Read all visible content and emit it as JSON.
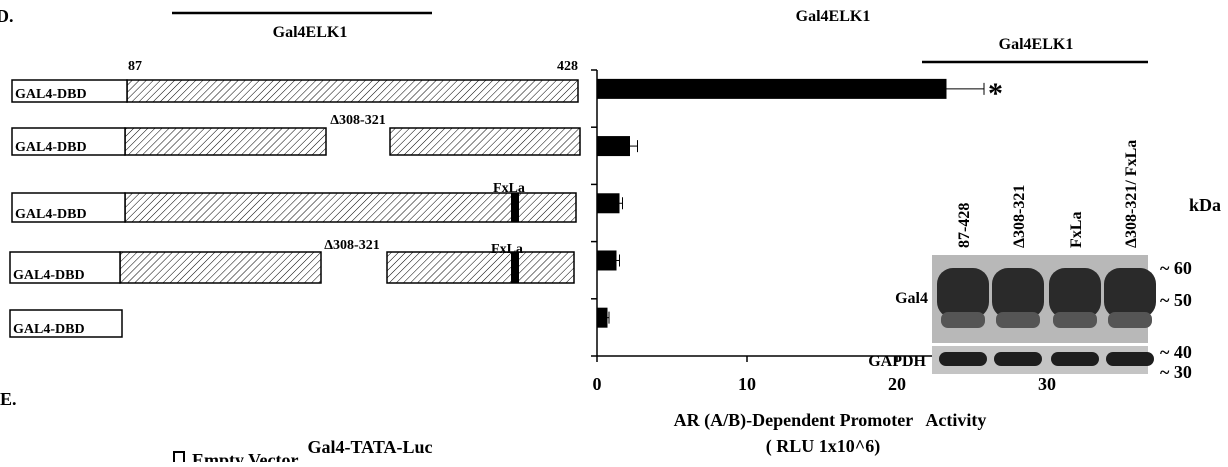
{
  "panel_labels": [
    "D.",
    "E."
  ],
  "top_label": "Gal4ELK1",
  "constructs": [
    {
      "label": "GAL4-DBD",
      "annotations": [
        "87",
        "428"
      ]
    },
    {
      "label": "GAL4-DBD",
      "annotations": [
        "Δ308-321"
      ]
    },
    {
      "label": "GAL4-DBD",
      "annotations": [
        "FxLa"
      ]
    },
    {
      "label": "GAL4-DBD",
      "annotations": [
        "Δ308-321",
        "FxLa"
      ]
    },
    {
      "label": "GAL4-DBD",
      "annotations": []
    }
  ],
  "chart_data": {
    "type": "bar",
    "orientation": "horizontal",
    "title": "Gal4ELK1",
    "categories": [
      null,
      null,
      null,
      null,
      null
    ],
    "values": [
      23.3,
      2.2,
      1.5,
      1.3,
      0.7
    ],
    "errors": [
      2.5,
      0.5,
      0.2,
      0.2,
      0.1
    ],
    "color": "#000000",
    "xlim": [
      0,
      30
    ],
    "xticks": [
      0,
      10,
      20,
      30
    ],
    "xlabel": "AR (A/B)-Dependent Promoter   Activity",
    "xlabel_unit": "( RLU 1x10^6)",
    "annotations": [
      {
        "text": "*",
        "category": 0
      }
    ]
  },
  "blot": {
    "header": "Gal4ELK1",
    "lanes": [
      "87-428",
      "Δ308-321",
      "FxLa",
      "Δ308-321/ FxLa"
    ],
    "rows": [
      "Gal4",
      "GAPDH"
    ],
    "unit": "kDa",
    "markers": [
      "~ 60",
      "~ 50",
      "~ 40",
      "~ 30"
    ]
  },
  "lower": {
    "title": "Gal4-TATA-Luc",
    "legend": [
      "Empty Vector"
    ]
  }
}
